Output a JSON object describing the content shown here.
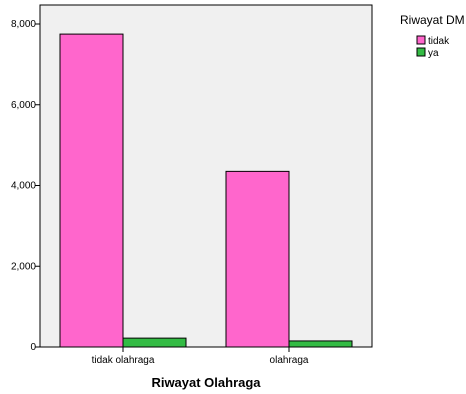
{
  "chart_data": {
    "type": "bar",
    "categories": [
      "tidak olahraga",
      "olahraga"
    ],
    "series": [
      {
        "name": "tidak",
        "values": [
          7750,
          4350
        ],
        "color": "#ff66cc"
      },
      {
        "name": "ya",
        "values": [
          220,
          150
        ],
        "color": "#33bb44"
      }
    ],
    "xlabel": "Riwayat Olahraga",
    "ylabel": "",
    "ylim": [
      0,
      8000
    ],
    "yticks": [
      0,
      2000,
      4000,
      6000,
      8000
    ],
    "ytick_labels": [
      "0",
      "2,000",
      "4,000",
      "6,000",
      "8,000"
    ],
    "legend_title": "Riwayat DM",
    "legend_position": "right",
    "grid": false,
    "plot_background": "#f0f0f0"
  }
}
